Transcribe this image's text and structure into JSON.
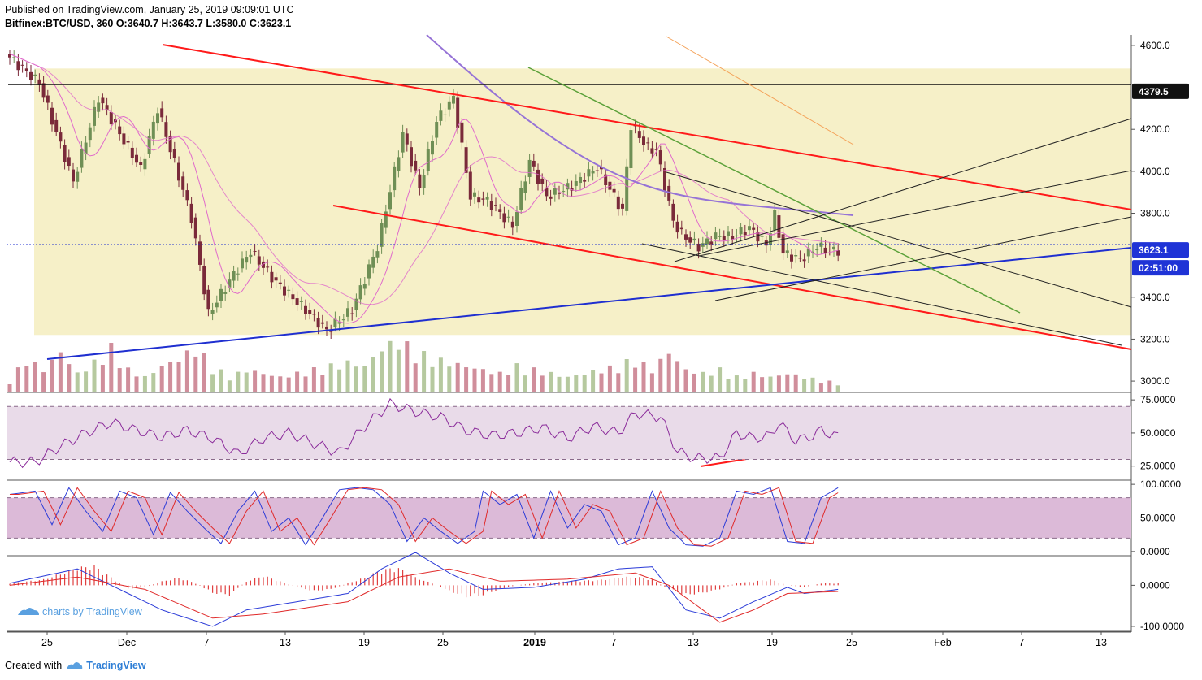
{
  "header": {
    "published": "Published on TradingView.com, January 25, 2019 09:09:01 UTC",
    "symbol_line": "Bitfinex:BTC/USD, 360 O:3640.7 H:3643.7 L:3580.0 C:3623.1"
  },
  "footer": {
    "prefix": "Created with",
    "brand": "TradingView"
  },
  "watermark": "charts by TradingView",
  "colors": {
    "up": "#a9bf8e",
    "down": "#c87a8a",
    "candle_up": "#6f8f55",
    "candle_down": "#7a2a3a",
    "channel_red": "#ff1a1a",
    "trend_blue": "#1f2fd0",
    "ma_purple": "#9673d6",
    "ma_pink": "#e06acb",
    "zone_fill": "#f6f0c8",
    "rsi_band": "#e9dbe9",
    "stoch_band": "#dcbad8",
    "green_line": "#5ca13a",
    "orange_line": "#f4a259",
    "price_label_bg": "#1f33d6"
  },
  "chart_data": [
    {
      "type": "candlestick",
      "title": "Bitfinex:BTC/USD, 360",
      "ohlc_last": {
        "O": 3640.7,
        "H": 3643.7,
        "L": 3580.0,
        "C": 3623.1
      },
      "ylim": [
        2950,
        4650
      ],
      "y_ticks": [
        "4600.0",
        "4200.0",
        "4000.0",
        "3800.0",
        "3400.0",
        "3200.0",
        "3000.0"
      ],
      "x_ticks": [
        "25",
        "Dec",
        "7",
        "13",
        "19",
        "25",
        "2019",
        "7",
        "13",
        "19",
        "25",
        "Feb",
        "7",
        "13"
      ],
      "price_labels": [
        {
          "value": "4379.5",
          "style": "dark"
        },
        {
          "value": "3623.1",
          "style": "blue"
        },
        {
          "value": "02:51:00",
          "style": "blue"
        }
      ],
      "price_points": [
        [
          0,
          4560
        ],
        [
          4,
          4420
        ],
        [
          8,
          3950
        ],
        [
          11,
          4350
        ],
        [
          16,
          4010
        ],
        [
          18,
          4300
        ],
        [
          22,
          3780
        ],
        [
          24,
          3320
        ],
        [
          27,
          3510
        ],
        [
          29,
          3620
        ],
        [
          32,
          3470
        ],
        [
          36,
          3320
        ],
        [
          38,
          3240
        ],
        [
          41,
          3340
        ],
        [
          44,
          3640
        ],
        [
          47,
          4180
        ],
        [
          49,
          3920
        ],
        [
          51,
          4240
        ],
        [
          53,
          4350
        ],
        [
          55,
          3880
        ],
        [
          57,
          3860
        ],
        [
          60,
          3740
        ],
        [
          62,
          4050
        ],
        [
          64,
          3880
        ],
        [
          67,
          3930
        ],
        [
          70,
          4020
        ],
        [
          73,
          3810
        ],
        [
          74,
          4220
        ],
        [
          76,
          4110
        ],
        [
          77,
          4100
        ],
        [
          79,
          3760
        ],
        [
          80,
          3700
        ],
        [
          82,
          3640
        ],
        [
          84,
          3690
        ],
        [
          86,
          3690
        ],
        [
          88,
          3730
        ],
        [
          90,
          3650
        ],
        [
          91,
          3790
        ],
        [
          92,
          3610
        ],
        [
          94,
          3580
        ],
        [
          96,
          3640
        ],
        [
          98,
          3623
        ]
      ],
      "volume_points": [
        [
          0,
          15
        ],
        [
          2,
          45
        ],
        [
          4,
          30
        ],
        [
          6,
          55
        ],
        [
          8,
          25
        ],
        [
          10,
          40
        ],
        [
          12,
          60
        ],
        [
          14,
          30
        ],
        [
          16,
          20
        ],
        [
          18,
          35
        ],
        [
          20,
          45
        ],
        [
          22,
          60
        ],
        [
          24,
          35
        ],
        [
          26,
          20
        ],
        [
          28,
          30
        ],
        [
          30,
          25
        ],
        [
          32,
          20
        ],
        [
          34,
          25
        ],
        [
          36,
          30
        ],
        [
          38,
          35
        ],
        [
          40,
          40
        ],
        [
          42,
          35
        ],
        [
          44,
          60
        ],
        [
          46,
          70
        ],
        [
          48,
          55
        ],
        [
          50,
          45
        ],
        [
          52,
          40
        ],
        [
          54,
          35
        ],
        [
          56,
          30
        ],
        [
          58,
          25
        ],
        [
          60,
          35
        ],
        [
          62,
          30
        ],
        [
          64,
          25
        ],
        [
          66,
          20
        ],
        [
          68,
          25
        ],
        [
          70,
          30
        ],
        [
          72,
          35
        ],
        [
          74,
          45
        ],
        [
          76,
          30
        ],
        [
          78,
          55
        ],
        [
          80,
          30
        ],
        [
          82,
          25
        ],
        [
          84,
          30
        ],
        [
          86,
          20
        ],
        [
          88,
          25
        ],
        [
          90,
          20
        ],
        [
          92,
          25
        ],
        [
          94,
          20
        ],
        [
          96,
          15
        ],
        [
          98,
          12
        ]
      ]
    },
    {
      "type": "line",
      "name": "RSI",
      "y_ticks": [
        "75.0000",
        "50.0000",
        "25.0000"
      ],
      "ylim": [
        15,
        80
      ],
      "values": [
        [
          0,
          28
        ],
        [
          3,
          28
        ],
        [
          6,
          40
        ],
        [
          9,
          50
        ],
        [
          12,
          58
        ],
        [
          15,
          52
        ],
        [
          18,
          47
        ],
        [
          21,
          52
        ],
        [
          24,
          46
        ],
        [
          27,
          34
        ],
        [
          30,
          46
        ],
        [
          33,
          50
        ],
        [
          36,
          42
        ],
        [
          39,
          35
        ],
        [
          42,
          55
        ],
        [
          45,
          72
        ],
        [
          48,
          66
        ],
        [
          51,
          62
        ],
        [
          54,
          52
        ],
        [
          57,
          48
        ],
        [
          60,
          50
        ],
        [
          63,
          54
        ],
        [
          66,
          46
        ],
        [
          69,
          55
        ],
        [
          72,
          50
        ],
        [
          74,
          65
        ],
        [
          77,
          62
        ],
        [
          79,
          36
        ],
        [
          81,
          31
        ],
        [
          84,
          31
        ],
        [
          86,
          50
        ],
        [
          88,
          46
        ],
        [
          90,
          48
        ],
        [
          91,
          58
        ],
        [
          93,
          44
        ],
        [
          95,
          48
        ],
        [
          96,
          52
        ],
        [
          98,
          47
        ]
      ]
    },
    {
      "type": "line",
      "name": "Stochastic",
      "y_ticks": [
        "100.0000",
        "50.0000",
        "0.0000"
      ],
      "ylim": [
        -5,
        105
      ],
      "values": [
        [
          0,
          85
        ],
        [
          3,
          90
        ],
        [
          5,
          40
        ],
        [
          7,
          95
        ],
        [
          9,
          60
        ],
        [
          11,
          30
        ],
        [
          13,
          90
        ],
        [
          15,
          80
        ],
        [
          17,
          25
        ],
        [
          19,
          88
        ],
        [
          21,
          60
        ],
        [
          23,
          35
        ],
        [
          25,
          12
        ],
        [
          27,
          60
        ],
        [
          29,
          90
        ],
        [
          31,
          30
        ],
        [
          33,
          50
        ],
        [
          35,
          10
        ],
        [
          37,
          50
        ],
        [
          39,
          92
        ],
        [
          41,
          95
        ],
        [
          43,
          92
        ],
        [
          45,
          70
        ],
        [
          47,
          15
        ],
        [
          49,
          50
        ],
        [
          51,
          30
        ],
        [
          53,
          12
        ],
        [
          55,
          30
        ],
        [
          56,
          90
        ],
        [
          58,
          70
        ],
        [
          60,
          85
        ],
        [
          62,
          20
        ],
        [
          64,
          90
        ],
        [
          66,
          35
        ],
        [
          68,
          70
        ],
        [
          70,
          60
        ],
        [
          72,
          10
        ],
        [
          74,
          20
        ],
        [
          76,
          90
        ],
        [
          78,
          35
        ],
        [
          80,
          10
        ],
        [
          82,
          8
        ],
        [
          84,
          20
        ],
        [
          86,
          90
        ],
        [
          88,
          85
        ],
        [
          90,
          95
        ],
        [
          92,
          15
        ],
        [
          94,
          12
        ],
        [
          96,
          80
        ],
        [
          98,
          95
        ]
      ]
    },
    {
      "type": "bar",
      "name": "MACD",
      "y_ticks": [
        "0.0000",
        "-100.0000"
      ],
      "ylim": [
        -110,
        70
      ],
      "histogram": [
        [
          0,
          5
        ],
        [
          2,
          10
        ],
        [
          4,
          15
        ],
        [
          6,
          30
        ],
        [
          8,
          45
        ],
        [
          10,
          50
        ],
        [
          12,
          20
        ],
        [
          14,
          -10
        ],
        [
          16,
          -5
        ],
        [
          18,
          10
        ],
        [
          20,
          20
        ],
        [
          22,
          5
        ],
        [
          24,
          -20
        ],
        [
          26,
          -25
        ],
        [
          28,
          10
        ],
        [
          30,
          25
        ],
        [
          32,
          10
        ],
        [
          34,
          -5
        ],
        [
          36,
          -15
        ],
        [
          38,
          -10
        ],
        [
          40,
          5
        ],
        [
          42,
          20
        ],
        [
          44,
          40
        ],
        [
          46,
          45
        ],
        [
          48,
          20
        ],
        [
          50,
          5
        ],
        [
          52,
          -15
        ],
        [
          54,
          -30
        ],
        [
          56,
          -25
        ],
        [
          58,
          -10
        ],
        [
          60,
          0
        ],
        [
          62,
          5
        ],
        [
          64,
          8
        ],
        [
          66,
          10
        ],
        [
          68,
          12
        ],
        [
          70,
          14
        ],
        [
          72,
          20
        ],
        [
          74,
          22
        ],
        [
          76,
          15
        ],
        [
          78,
          -10
        ],
        [
          80,
          -25
        ],
        [
          82,
          -20
        ],
        [
          84,
          -10
        ],
        [
          86,
          5
        ],
        [
          88,
          10
        ],
        [
          90,
          15
        ],
        [
          92,
          0
        ],
        [
          94,
          -5
        ],
        [
          96,
          5
        ],
        [
          98,
          5
        ]
      ],
      "macd": [
        [
          0,
          5
        ],
        [
          8,
          40
        ],
        [
          14,
          -20
        ],
        [
          18,
          -60
        ],
        [
          24,
          -100
        ],
        [
          28,
          -60
        ],
        [
          34,
          -40
        ],
        [
          40,
          -20
        ],
        [
          44,
          40
        ],
        [
          48,
          80
        ],
        [
          52,
          30
        ],
        [
          56,
          -10
        ],
        [
          62,
          -5
        ],
        [
          68,
          15
        ],
        [
          72,
          40
        ],
        [
          76,
          45
        ],
        [
          80,
          -60
        ],
        [
          84,
          -80
        ],
        [
          88,
          -40
        ],
        [
          92,
          -5
        ],
        [
          94,
          -20
        ],
        [
          98,
          -10
        ]
      ],
      "signal": [
        [
          0,
          0
        ],
        [
          8,
          20
        ],
        [
          16,
          -10
        ],
        [
          24,
          -80
        ],
        [
          30,
          -70
        ],
        [
          40,
          -40
        ],
        [
          46,
          20
        ],
        [
          52,
          40
        ],
        [
          58,
          10
        ],
        [
          66,
          15
        ],
        [
          74,
          30
        ],
        [
          78,
          0
        ],
        [
          84,
          -90
        ],
        [
          88,
          -60
        ],
        [
          92,
          -20
        ],
        [
          98,
          -15
        ]
      ]
    }
  ]
}
